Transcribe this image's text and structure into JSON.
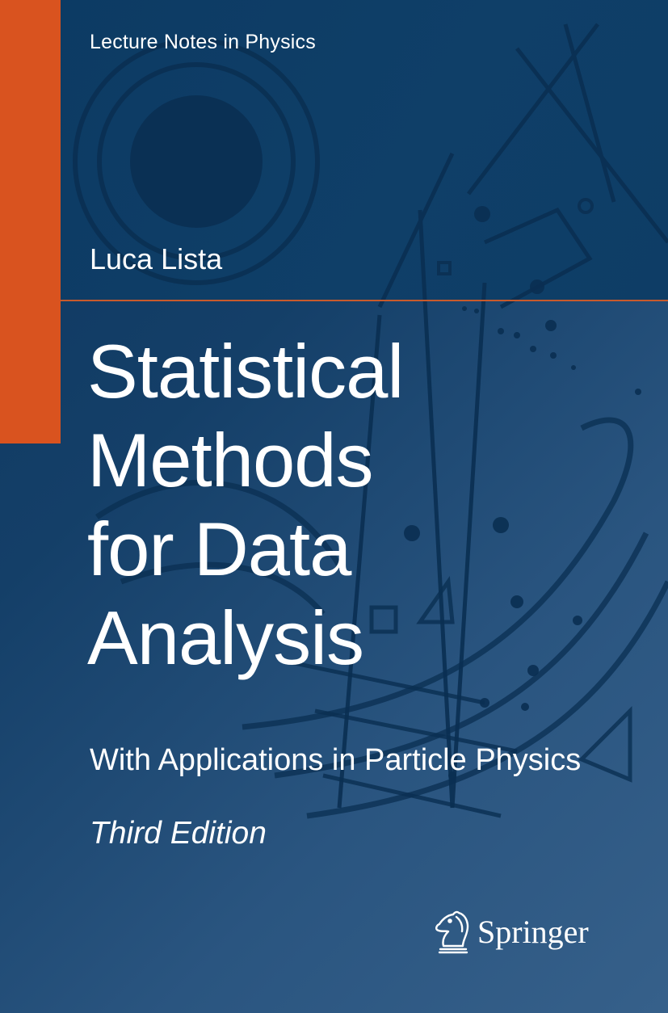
{
  "cover": {
    "series": "Lecture Notes in Physics",
    "author": "Luca Lista",
    "title_lines": [
      "Statistical",
      "Methods",
      "for Data",
      "Analysis"
    ],
    "subtitle": "With Applications in Particle Physics",
    "edition": "Third Edition",
    "publisher": "Springer"
  },
  "colors": {
    "background": "#0f3b63",
    "accent_bar": "#d9531f",
    "divider": "#c85a2c",
    "text": "#ffffff"
  },
  "icons": {
    "publisher_logo": "springer-horse-chess-knight-icon"
  }
}
